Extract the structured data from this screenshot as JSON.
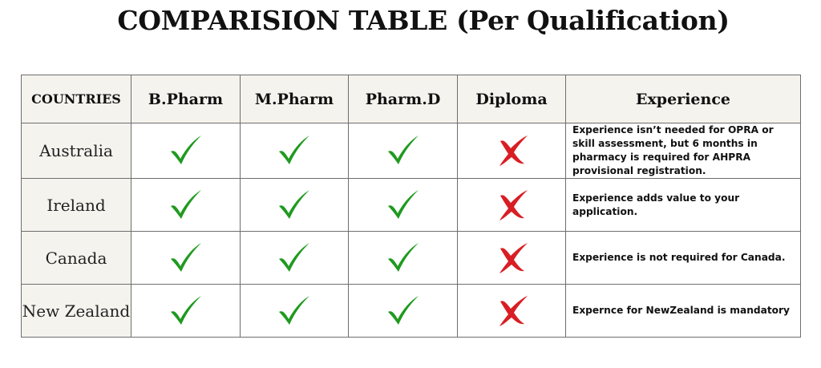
{
  "title": "COMPARISION TABLE (Per Qualification)",
  "table": {
    "headers": [
      "COUNTRIES",
      "B.Pharm",
      "M.Pharm",
      "Pharm.D",
      "Diploma",
      "Experience"
    ],
    "rows": [
      {
        "country": "Australia",
        "bpharm": "check-icon",
        "mpharm": "check-icon",
        "pharmd": "check-icon",
        "diploma": "cross-icon",
        "experience": "Experience isn’t needed for OPRA or skill assessment, but 6 months in pharmacy is required for AHPRA provisional registration."
      },
      {
        "country": "Ireland",
        "bpharm": "check-icon",
        "mpharm": "check-icon",
        "pharmd": "check-icon",
        "diploma": "cross-icon",
        "experience": "Experience adds value to your application."
      },
      {
        "country": "Canada",
        "bpharm": "check-icon",
        "mpharm": "check-icon",
        "pharmd": "check-icon",
        "diploma": "cross-icon",
        "experience": "Experience is not required for Canada."
      },
      {
        "country": "New Zealand",
        "bpharm": "check-icon",
        "mpharm": "check-icon",
        "pharmd": "check-icon",
        "diploma": "cross-icon",
        "experience": "Expernce for NewZealand is mandatory"
      }
    ]
  },
  "colors": {
    "check": "#1f9a1f",
    "cross": "#d81e24",
    "header_bg": "#f5f3ee",
    "border": "#6e6e6e"
  }
}
